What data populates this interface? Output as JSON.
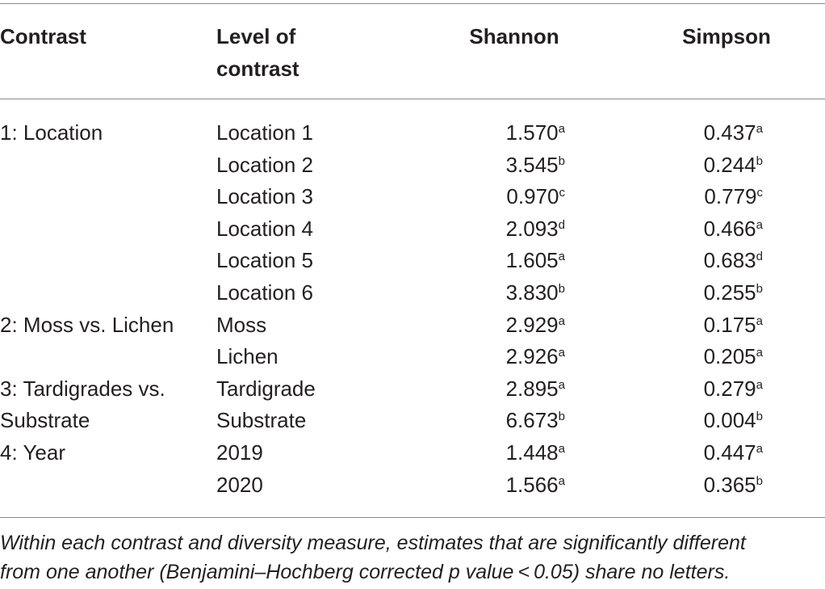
{
  "table": {
    "headers": {
      "contrast": "Contrast",
      "level_line1": "Level of",
      "level_line2": "contrast",
      "shannon": "Shannon",
      "simpson": "Simpson"
    },
    "rows": [
      {
        "contrast": "1: Location",
        "level": "Location 1",
        "shannon": "1.570",
        "shannon_sup": "a",
        "simpson": "0.437",
        "simpson_sup": "a"
      },
      {
        "contrast": "",
        "level": "Location 2",
        "shannon": "3.545",
        "shannon_sup": "b",
        "simpson": "0.244",
        "simpson_sup": "b"
      },
      {
        "contrast": "",
        "level": "Location 3",
        "shannon": "0.970",
        "shannon_sup": "c",
        "simpson": "0.779",
        "simpson_sup": "c"
      },
      {
        "contrast": "",
        "level": "Location 4",
        "shannon": "2.093",
        "shannon_sup": "d",
        "simpson": "0.466",
        "simpson_sup": "a"
      },
      {
        "contrast": "",
        "level": "Location 5",
        "shannon": "1.605",
        "shannon_sup": "a",
        "simpson": "0.683",
        "simpson_sup": "d"
      },
      {
        "contrast": "",
        "level": "Location 6",
        "shannon": "3.830",
        "shannon_sup": "b",
        "simpson": "0.255",
        "simpson_sup": "b"
      },
      {
        "contrast": "2: Moss vs. Lichen",
        "level": "Moss",
        "shannon": "2.929",
        "shannon_sup": "a",
        "simpson": "0.175",
        "simpson_sup": "a"
      },
      {
        "contrast": "",
        "level": "Lichen",
        "shannon": "2.926",
        "shannon_sup": "a",
        "simpson": "0.205",
        "simpson_sup": "a"
      },
      {
        "contrast": "3: Tardigrades vs.",
        "level": "Tardigrade",
        "shannon": "2.895",
        "shannon_sup": "a",
        "simpson": "0.279",
        "simpson_sup": "a"
      },
      {
        "contrast": "Substrate",
        "level": "Substrate",
        "shannon": "6.673",
        "shannon_sup": "b",
        "simpson": "0.004",
        "simpson_sup": "b"
      },
      {
        "contrast": "4: Year",
        "level": "2019",
        "shannon": "1.448",
        "shannon_sup": "a",
        "simpson": "0.447",
        "simpson_sup": "a"
      },
      {
        "contrast": "",
        "level": "2020",
        "shannon": "1.566",
        "shannon_sup": "a",
        "simpson": "0.365",
        "simpson_sup": "b"
      }
    ],
    "footnote_line1": "Within each contrast and diversity measure, estimates that are significantly different",
    "footnote_line2": "from one another (Benjamini–Hochberg corrected p value < 0.05) share no letters."
  }
}
